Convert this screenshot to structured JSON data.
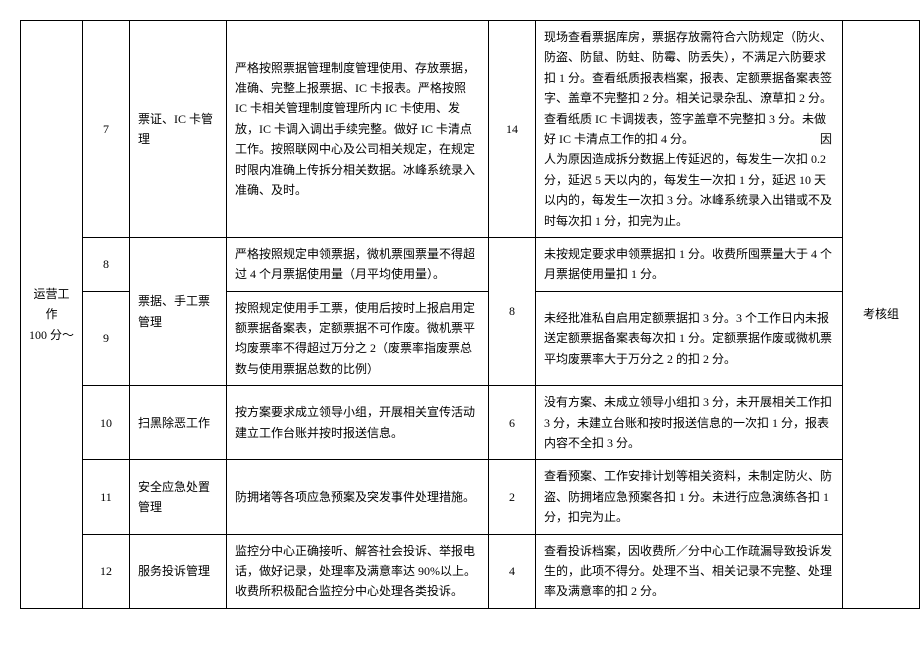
{
  "category": "运营工作\n100 分～",
  "evaluator": "考核组",
  "rows": [
    {
      "num": "7",
      "item": "票证、IC 卡管理",
      "requirement": "严格按照票据管理制度管理使用、存放票据，准确、完整上报票据、IC 卡报表。严格按照 IC 卡相关管理制度管理所内 IC 卡使用、发放，IC 卡调入调出手续完整。做好 IC 卡清点工作。按照联网中心及公司相关规定，在规定时限内准确上传拆分相关数据。冰峰系统录入准确、及时。",
      "score": "14",
      "detail": "现场查看票据库房，票据存放需符合六防规定（防火、防盗、防鼠、防蛀、防霉、防丢失），不满足六防要求扣 1 分。查看纸质报表档案，报表、定额票据备案表签字、盖章不完整扣 2 分。相关记录杂乱、潦草扣 2 分。查看纸质 IC 卡调拨表，签字盖章不完整扣 3 分。未做好 IC 卡清点工作的扣 4 分。　　　　　　　　　　　因人为原因造成拆分数据上传延迟的，每发生一次扣 0.2 分，延迟 5 天以内的，每发生一次扣 1 分，延迟 10 天以内的，每发生一次扣 3 分。冰峰系统录入出错或不及时每次扣 1 分，扣完为止。"
    },
    {
      "num": "8",
      "item": "票据、手工票管理",
      "requirement": "严格按照规定申领票据，微机票囤票量不得超过 4 个月票据使用量（月平均使用量）。",
      "score": "8",
      "detail": "未按规定要求申领票据扣 1 分。收费所囤票量大于 4 个月票据使用量扣 1 分。"
    },
    {
      "num": "9",
      "item": "",
      "requirement": "按照规定使用手工票，使用后按时上报启用定额票据备案表，定额票据不可作废。微机票平均废票率不得超过万分之 2（废票率指废票总数与使用票据总数的比例）",
      "score": "",
      "detail": "未经批准私自启用定额票据扣 3 分。3 个工作日内未报送定额票据备案表每次扣 1 分。定额票据作废或微机票平均废票率大于万分之 2 的扣 2 分。"
    },
    {
      "num": "10",
      "item": "扫黑除恶工作",
      "requirement": "按方案要求成立领导小组，开展相关宣传活动建立工作台账并按时报送信息。",
      "score": "6",
      "detail": "没有方案、未成立领导小组扣 3 分，未开展相关工作扣 3 分，未建立台账和按时报送信息的一次扣 1 分，报表内容不全扣 3 分。"
    },
    {
      "num": "11",
      "item": "安全应急处置管理",
      "requirement": "防拥堵等各项应急预案及突发事件处理措施。",
      "score": "2",
      "detail": "查看预案、工作安排计划等相关资料，未制定防火、防盗、防拥堵应急预案各扣 1 分。未进行应急演练各扣 1 分，扣完为止。"
    },
    {
      "num": "12",
      "item": "服务投诉管理",
      "requirement": "监控分中心正确接听、解答社会投诉、举报电话，做好记录，处理率及满意率达 90%以上。收费所积极配合监控分中心处理各类投诉。",
      "score": "4",
      "detail": "查看投诉档案，因收费所／分中心工作疏漏导致投诉发生的，此项不得分。处理不当、相关记录不完整、处理率及满意率的扣 2 分。"
    }
  ]
}
